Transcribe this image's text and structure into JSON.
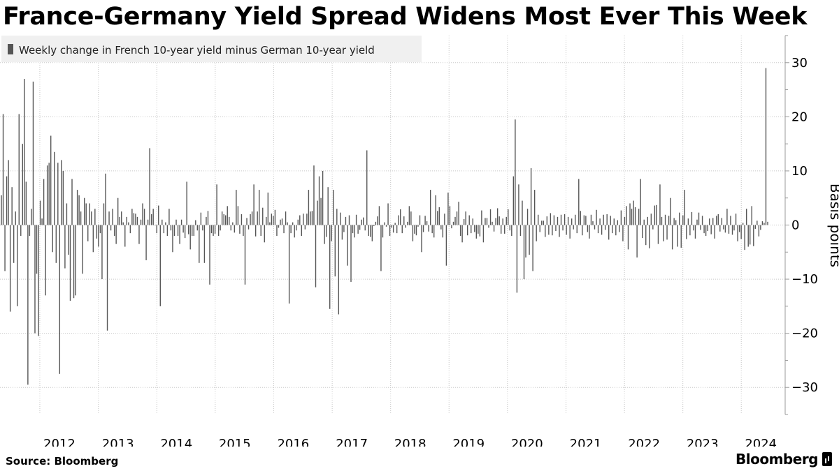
{
  "title": "France-Germany Yield Spread Widens Most Ever This Week",
  "footer": {
    "source": "Source: Bloomberg",
    "brand": "Bloomberg"
  },
  "colors": {
    "bar": "#555555",
    "grid": "#c8c8c8",
    "legend_bg": "#f0f0f0",
    "text": "#000000"
  },
  "chart_data": {
    "type": "bar",
    "title": "France-Germany Yield Spread Widens Most Ever This Week",
    "legend": [
      "Weekly change in French 10-year yield minus German 10-year yield"
    ],
    "legend_position": "top-left",
    "ylabel": "Basis points",
    "xlabel": "",
    "ylim": [
      -35,
      35
    ],
    "yticks": [
      30,
      20,
      10,
      0,
      -10,
      -20,
      -30
    ],
    "xticks": [
      "2012",
      "2013",
      "2014",
      "2015",
      "2016",
      "2017",
      "2018",
      "2019",
      "2020",
      "2021",
      "2022",
      "2023",
      "2024"
    ],
    "x_range": [
      "2011-05-06",
      "2024-06-14"
    ],
    "grid": true,
    "series": [
      {
        "name": "Weekly change in French 10-year yield minus German 10-year yield",
        "values": [
          5.5,
          20.5,
          -8.5,
          9,
          12,
          -16,
          7,
          -7,
          2.5,
          -15,
          20.5,
          -2,
          15,
          27,
          8,
          -29.5,
          -2,
          3,
          26.5,
          -20,
          -9,
          -20.5,
          4.5,
          1.2,
          8.5,
          -13,
          11,
          11.5,
          16.5,
          -5,
          13.5,
          -7,
          11.5,
          -27.5,
          12,
          10,
          -8,
          4,
          -5.5,
          -14,
          8.5,
          -13.5,
          -13,
          6.5,
          5.5,
          2.5,
          -9,
          5,
          4,
          -3,
          4,
          2.5,
          -5,
          3,
          -2.5,
          -4,
          -1.5,
          -10,
          4,
          9.5,
          -19.5,
          2.5,
          -1,
          3,
          -2,
          -3.5,
          5,
          1.5,
          2.5,
          0.5,
          -4,
          1.5,
          0.5,
          -1.5,
          3,
          2.2,
          2.1,
          1.5,
          -3.5,
          1,
          4,
          3,
          -6.5,
          1,
          14.2,
          2,
          3,
          0,
          -1.5,
          3.6,
          -15,
          1,
          -1.5,
          0.5,
          -2,
          3,
          -1,
          -5,
          -2,
          1,
          -2,
          -3.5,
          1,
          -1.4,
          -2.4,
          8,
          -1.7,
          -4.5,
          -2,
          -2,
          0.9,
          -1,
          -7,
          2.3,
          -1,
          -7,
          1.5,
          2.6,
          -11,
          -1.5,
          -2,
          -1.6,
          7.5,
          -2,
          -1,
          2.5,
          2,
          1.8,
          3.5,
          1.5,
          -1,
          0.5,
          -1.4,
          6.5,
          3.5,
          -1.6,
          2,
          -2,
          -11,
          1.3,
          -0.8,
          2,
          2.5,
          7.5,
          -2.1,
          2.5,
          6.5,
          -2,
          3.2,
          -3.2,
          1.5,
          6,
          0.5,
          2.1,
          1.7,
          2.8,
          -2,
          -0.5,
          1,
          1.2,
          -1.5,
          2.5,
          0.5,
          -14.5,
          -1.5,
          0.5,
          -2.3,
          -1,
          1,
          1.8,
          -2,
          2.1,
          -0.8,
          2.1,
          6.5,
          2.5,
          2.6,
          11,
          -11.5,
          4.5,
          9,
          5,
          10,
          -3.5,
          -2.2,
          7,
          -15.5,
          -3,
          6.5,
          -9.5,
          3,
          -16.5,
          2.3,
          -2.7,
          -1.3,
          1.5,
          -7.5,
          1.8,
          -10.5,
          -1.5,
          -2.3,
          1.9,
          -1.6,
          -0.9,
          1,
          1.4,
          -1,
          13.8,
          -2,
          -2.2,
          -3,
          -0.2,
          0.6,
          1.6,
          3.5,
          -8.5,
          -2.3,
          0.5,
          -0.3,
          4,
          -2,
          -0.5,
          -1.4,
          0.4,
          -1.5,
          1.8,
          2.9,
          -1.5,
          1.6,
          -0.5,
          0.6,
          3.5,
          2.5,
          -3,
          -1.6,
          -1.9,
          -0.3,
          1.8,
          -5,
          -1.3,
          1.7,
          0.7,
          -1.2,
          6.5,
          -1.5,
          -2.3,
          5.5,
          2.6,
          3.3,
          -0.8,
          -2.3,
          2.1,
          -7.5,
          6,
          3.5,
          -0.6,
          0.6,
          1.5,
          2.5,
          4.3,
          -2,
          -3.2,
          1.1,
          2.5,
          -1.9,
          1.8,
          -1.5,
          1.2,
          -1.3,
          -2.5,
          -1.6,
          -2.1,
          2.7,
          -3.2,
          1.3,
          1.3,
          -0.5,
          2.9,
          0.6,
          -1.2,
          1.3,
          3.1,
          1.6,
          -1.6,
          1.2,
          -1.6,
          1.5,
          2.9,
          -1,
          -2,
          9,
          19.5,
          -12.5,
          7.5,
          -2,
          4.5,
          -10,
          -6,
          3,
          -5.5,
          10.5,
          -8.5,
          6.5,
          -3,
          1.9,
          -1.3,
          0.8,
          0.8,
          -2.2,
          1.6,
          -1.8,
          2.2,
          -1.9,
          1.8,
          -1.1,
          1.5,
          -2.2,
          1.9,
          -1,
          2,
          -1.8,
          1.5,
          -2.5,
          1.2,
          -0.8,
          1.9,
          -1.5,
          8.5,
          2.6,
          -1.9,
          1.8,
          1.7,
          -1.3,
          -2.5,
          1.9,
          0.7,
          -0.8,
          2.8,
          -1.5,
          1.2,
          -1.8,
          1.9,
          -0.9,
          2,
          -2.7,
          1.7,
          -1.5,
          1.2,
          -1.9,
          0.9,
          -1.3,
          2.7,
          -3,
          1.5,
          3.5,
          -4.5,
          4,
          3,
          4.5,
          3.3,
          -6,
          3,
          8.5,
          -2.4,
          1,
          -3.7,
          1.5,
          -4.3,
          2.1,
          -0.8,
          3.6,
          3.7,
          -3.5,
          7.5,
          1.5,
          -3,
          1.9,
          -2.7,
          1.7,
          5,
          -4.5,
          1.3,
          0.9,
          -4,
          2.3,
          -4.2,
          1.8,
          6.5,
          -2.6,
          1.2,
          -1.9,
          2.4,
          -1,
          -2.5,
          1,
          2.3,
          -0.9,
          1.7,
          -1.5,
          -2,
          -1.1,
          1.2,
          -1.7,
          1.3,
          -2.5,
          1.7,
          2,
          -1.2,
          1.3,
          -0.8,
          -1.4,
          3,
          -1.6,
          1.7,
          -1.8,
          -1,
          2.1,
          -3,
          -1.3,
          -2.6,
          0.4,
          -4.6,
          3,
          -4,
          -3.6,
          3.5,
          -3.9,
          -0.7,
          0.8,
          -2.1,
          -0.9,
          0.7,
          0.4,
          29,
          0.6
        ]
      }
    ]
  }
}
